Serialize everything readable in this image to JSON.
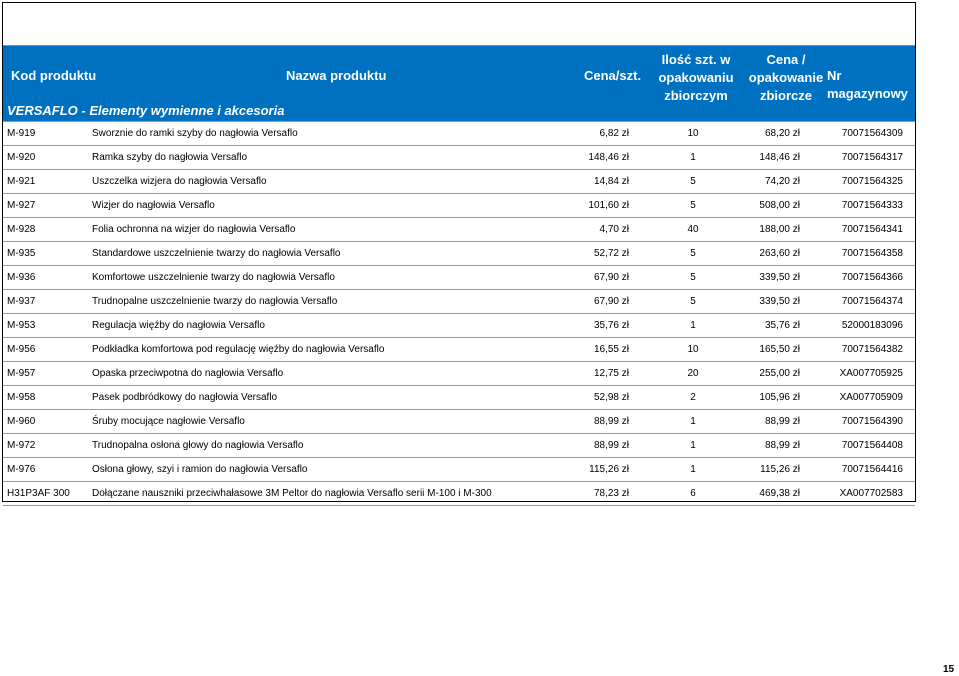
{
  "header": {
    "code": "Kod produktu",
    "name": "Nazwa produktu",
    "price": "Cena/szt.",
    "qty_l1": "Ilość szt. w",
    "qty_l2": "opakowaniu",
    "qty_l3": "zbiorczym",
    "pack_l1": "Cena /",
    "pack_l2": "opakowanie",
    "pack_l3": "zbiorcze",
    "mag": "Nr magazynowy"
  },
  "section_title": "VERSAFLO - Elementy wymienne i akcesoria",
  "colors": {
    "header_bg": "#0070c0",
    "header_fg": "#ffffff"
  },
  "rows": [
    {
      "code": "M-919",
      "name": "Sworznie do ramki szyby do nagłowia Versaflo",
      "price": "6,82 zł",
      "qty": "10",
      "pack": "68,20 zł",
      "mag": "70071564309"
    },
    {
      "code": "M-920",
      "name": "Ramka szyby do nagłowia Versaflo",
      "price": "148,46 zł",
      "qty": "1",
      "pack": "148,46 zł",
      "mag": "70071564317"
    },
    {
      "code": "M-921",
      "name": "Uszczelka wizjera do nagłowia Versaflo",
      "price": "14,84 zł",
      "qty": "5",
      "pack": "74,20 zł",
      "mag": "70071564325"
    },
    {
      "code": "M-927",
      "name": "Wizjer do nagłowia Versaflo",
      "price": "101,60 zł",
      "qty": "5",
      "pack": "508,00 zł",
      "mag": "70071564333"
    },
    {
      "code": "M-928",
      "name": "Folia ochronna na wizjer do nagłowia Versaflo",
      "price": "4,70 zł",
      "qty": "40",
      "pack": "188,00 zł",
      "mag": "70071564341"
    },
    {
      "code": "M-935",
      "name": "Standardowe uszczelnienie twarzy do nagłowia Versaflo",
      "price": "52,72 zł",
      "qty": "5",
      "pack": "263,60 zł",
      "mag": "70071564358"
    },
    {
      "code": "M-936",
      "name": "Komfortowe uszczelnienie twarzy do nagłowia Versaflo",
      "price": "67,90 zł",
      "qty": "5",
      "pack": "339,50 zł",
      "mag": "70071564366"
    },
    {
      "code": "M-937",
      "name": "Trudnopalne uszczelnienie twarzy do nagłowia Versaflo",
      "price": "67,90 zł",
      "qty": "5",
      "pack": "339,50 zł",
      "mag": "70071564374"
    },
    {
      "code": "M-953",
      "name": "Regulacja więźby do nagłowia Versaflo",
      "price": "35,76 zł",
      "qty": "1",
      "pack": "35,76 zł",
      "mag": "52000183096"
    },
    {
      "code": "M-956",
      "name": "Podkładka komfortowa pod regulację więźby do nagłowia Versaflo",
      "price": "16,55 zł",
      "qty": "10",
      "pack": "165,50 zł",
      "mag": "70071564382"
    },
    {
      "code": "M-957",
      "name": "Opaska przeciwpotna do nagłowia Versaflo",
      "price": "12,75 zł",
      "qty": "20",
      "pack": "255,00 zł",
      "mag": "XA007705925"
    },
    {
      "code": "M-958",
      "name": "Pasek podbródkowy do nagłowia Versaflo",
      "price": "52,98 zł",
      "qty": "2",
      "pack": "105,96 zł",
      "mag": "XA007705909"
    },
    {
      "code": "M-960",
      "name": "Śruby mocujące nagłowie Versaflo",
      "price": "88,99 zł",
      "qty": "1",
      "pack": "88,99 zł",
      "mag": "70071564390"
    },
    {
      "code": "M-972",
      "name": "Trudnopalna osłona głowy do nagłowia Versaflo",
      "price": "88,99 zł",
      "qty": "1",
      "pack": "88,99 zł",
      "mag": "70071564408"
    },
    {
      "code": "M-976",
      "name": "Osłona głowy, szyi i ramion do nagłowia Versaflo",
      "price": "115,26 zł",
      "qty": "1",
      "pack": "115,26 zł",
      "mag": "70071564416"
    },
    {
      "code": "H31P3AF 300",
      "name": "Dołączane nauszniki przeciwhałasowe 3M Peltor do nagłowia Versaflo serii M-100 i M-300",
      "price": "78,23 zł",
      "qty": "6",
      "pack": "469,38 zł",
      "mag": "XA007702583"
    }
  ],
  "page_number": "15"
}
